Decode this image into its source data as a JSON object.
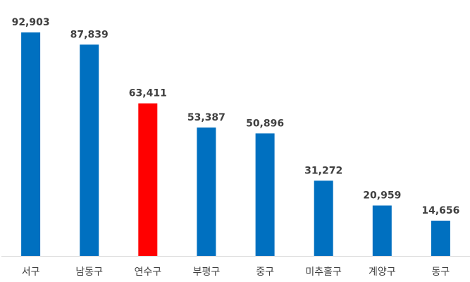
{
  "chart_data": {
    "type": "bar",
    "categories": [
      "서구",
      "남동구",
      "연수구",
      "부평구",
      "중구",
      "미추홀구",
      "계양구",
      "동구"
    ],
    "values": [
      92903,
      87839,
      63411,
      53387,
      50896,
      31272,
      20959,
      14656
    ],
    "value_labels": [
      "92,903",
      "87,839",
      "63,411",
      "53,387",
      "50,896",
      "31,272",
      "20,959",
      "14,656"
    ],
    "colors": [
      "#0070C0",
      "#0070C0",
      "#FF0000",
      "#0070C0",
      "#0070C0",
      "#0070C0",
      "#0070C0",
      "#0070C0"
    ],
    "highlight_category": "연수구",
    "ylim": [
      0,
      92903
    ],
    "grid": false,
    "axis_color": "#D9D9D9",
    "label_color": "#404040"
  }
}
